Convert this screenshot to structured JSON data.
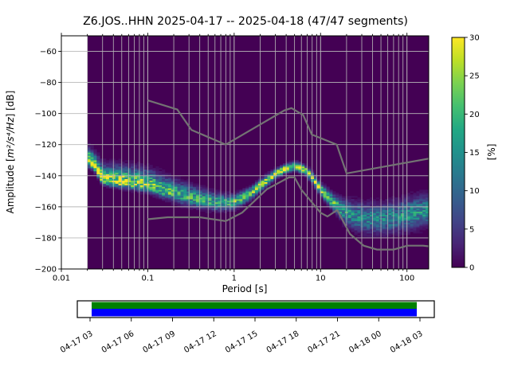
{
  "figure": {
    "title": "Z6.JOS..HHN   2025-04-17 -- 2025-04-18  (47/47 segments)",
    "station_id": "Z6.JOS..HHN",
    "date_range": "2025-04-17 -- 2025-04-18",
    "segments": "47/47 segments",
    "xlabel": "Period [s]",
    "ylabel_prefix": "Amplitude [",
    "ylabel_math": "m²/s⁴/Hz",
    "ylabel_suffix": "] [dB]"
  },
  "chart_data": {
    "type": "heatmap",
    "title": "Z6.JOS..HHN   2025-04-17 -- 2025-04-18  (47/47 segments)",
    "xlabel": "Period [s]",
    "ylabel": "Amplitude [m²/s⁴/Hz] [dB]",
    "xscale": "log",
    "xlim": [
      0.01,
      178.6
    ],
    "ylim": [
      -200,
      -50
    ],
    "x_major_ticks": [
      {
        "value": 0.01,
        "label": "0.01"
      },
      {
        "value": 0.1,
        "label": "0.1"
      },
      {
        "value": 1,
        "label": "1"
      },
      {
        "value": 10,
        "label": "10"
      },
      {
        "value": 100,
        "label": "100"
      }
    ],
    "y_ticks": [
      {
        "value": -60,
        "label": "−60"
      },
      {
        "value": -80,
        "label": "−80"
      },
      {
        "value": -100,
        "label": "−100"
      },
      {
        "value": -120,
        "label": "−120"
      },
      {
        "value": -140,
        "label": "−140"
      },
      {
        "value": -160,
        "label": "−160"
      },
      {
        "value": -180,
        "label": "−180"
      },
      {
        "value": -200,
        "label": "−200"
      }
    ],
    "grid": true,
    "grid_color": "#b8b8b8",
    "background_color": "#440154",
    "colorbar": {
      "label": "[%]",
      "min": 0,
      "max": 30,
      "ticks": [
        0,
        5,
        10,
        15,
        20,
        25,
        30
      ],
      "colormap": "viridis",
      "stops": [
        [
          0.0,
          "#440154"
        ],
        [
          0.1,
          "#482475"
        ],
        [
          0.2,
          "#414487"
        ],
        [
          0.3,
          "#355f8d"
        ],
        [
          0.4,
          "#2a788e"
        ],
        [
          0.5,
          "#21918c"
        ],
        [
          0.6,
          "#22a884"
        ],
        [
          0.7,
          "#44bf70"
        ],
        [
          0.8,
          "#7ad151"
        ],
        [
          0.9,
          "#bddf26"
        ],
        [
          1.0,
          "#fde725"
        ]
      ]
    },
    "psd_distribution": {
      "period_range_s": [
        0.02,
        178.6
      ],
      "anchors": [
        {
          "period": 0.02,
          "mode_db": -130.5,
          "sigma_down_db": 2.0,
          "sigma_up_db": 4.5,
          "peak_pct": 30
        },
        {
          "period": 0.024,
          "mode_db": -134.0,
          "sigma_down_db": 1.8,
          "sigma_up_db": 4.5,
          "peak_pct": 30
        },
        {
          "period": 0.03,
          "mode_db": -143.0,
          "sigma_down_db": 1.8,
          "sigma_up_db": 5.0,
          "peak_pct": 30
        },
        {
          "period": 0.045,
          "mode_db": -144.5,
          "sigma_down_db": 2.0,
          "sigma_up_db": 5.5,
          "peak_pct": 28
        },
        {
          "period": 0.07,
          "mode_db": -145.5,
          "sigma_down_db": 2.2,
          "sigma_up_db": 5.5,
          "peak_pct": 26
        },
        {
          "period": 0.1,
          "mode_db": -146.5,
          "sigma_down_db": 2.5,
          "sigma_up_db": 5.5,
          "peak_pct": 24
        },
        {
          "period": 0.16,
          "mode_db": -150.0,
          "sigma_down_db": 3.0,
          "sigma_up_db": 5.0,
          "peak_pct": 21
        },
        {
          "period": 0.25,
          "mode_db": -153.0,
          "sigma_down_db": 3.2,
          "sigma_up_db": 4.5,
          "peak_pct": 19
        },
        {
          "period": 0.4,
          "mode_db": -156.0,
          "sigma_down_db": 3.0,
          "sigma_up_db": 4.0,
          "peak_pct": 18
        },
        {
          "period": 0.65,
          "mode_db": -157.8,
          "sigma_down_db": 2.8,
          "sigma_up_db": 3.2,
          "peak_pct": 19
        },
        {
          "period": 1.0,
          "mode_db": -157.5,
          "sigma_down_db": 2.5,
          "sigma_up_db": 2.6,
          "peak_pct": 21
        },
        {
          "period": 1.5,
          "mode_db": -152.5,
          "sigma_down_db": 2.2,
          "sigma_up_db": 2.3,
          "peak_pct": 23
        },
        {
          "period": 2.2,
          "mode_db": -145.0,
          "sigma_down_db": 2.0,
          "sigma_up_db": 2.0,
          "peak_pct": 26
        },
        {
          "period": 3.0,
          "mode_db": -139.5,
          "sigma_down_db": 1.7,
          "sigma_up_db": 1.7,
          "peak_pct": 29
        },
        {
          "period": 4.0,
          "mode_db": -135.8,
          "sigma_down_db": 1.5,
          "sigma_up_db": 1.6,
          "peak_pct": 30
        },
        {
          "period": 5.0,
          "mode_db": -134.3,
          "sigma_down_db": 1.5,
          "sigma_up_db": 1.6,
          "peak_pct": 30
        },
        {
          "period": 6.5,
          "mode_db": -136.5,
          "sigma_down_db": 1.6,
          "sigma_up_db": 1.7,
          "peak_pct": 30
        },
        {
          "period": 8.0,
          "mode_db": -141.5,
          "sigma_down_db": 1.8,
          "sigma_up_db": 1.9,
          "peak_pct": 28
        },
        {
          "period": 10.0,
          "mode_db": -149.5,
          "sigma_down_db": 2.0,
          "sigma_up_db": 2.2,
          "peak_pct": 26
        },
        {
          "period": 14.0,
          "mode_db": -157.5,
          "sigma_down_db": 2.8,
          "sigma_up_db": 3.0,
          "peak_pct": 20
        },
        {
          "period": 18.0,
          "mode_db": -163.0,
          "sigma_down_db": 4.0,
          "sigma_up_db": 4.2,
          "peak_pct": 16
        },
        {
          "period": 25.0,
          "mode_db": -166.5,
          "sigma_down_db": 5.0,
          "sigma_up_db": 5.2,
          "peak_pct": 14
        },
        {
          "period": 35.0,
          "mode_db": -168.0,
          "sigma_down_db": 5.5,
          "sigma_up_db": 5.5,
          "peak_pct": 13
        },
        {
          "period": 50.0,
          "mode_db": -168.0,
          "sigma_down_db": 5.5,
          "sigma_up_db": 5.5,
          "peak_pct": 13
        },
        {
          "period": 80.0,
          "mode_db": -166.8,
          "sigma_down_db": 5.5,
          "sigma_up_db": 5.8,
          "peak_pct": 14
        },
        {
          "period": 120.0,
          "mode_db": -164.5,
          "sigma_down_db": 5.5,
          "sigma_up_db": 5.8,
          "peak_pct": 15
        },
        {
          "period": 178.6,
          "mode_db": -162.5,
          "sigma_down_db": 5.5,
          "sigma_up_db": 5.8,
          "peak_pct": 15
        }
      ]
    },
    "noise_models": {
      "color": "#737373",
      "nhnm": [
        [
          0.1,
          -91.5
        ],
        [
          0.22,
          -97.4
        ],
        [
          0.32,
          -110.5
        ],
        [
          0.8,
          -120.0
        ],
        [
          3.8,
          -98.0
        ],
        [
          4.6,
          -96.5
        ],
        [
          6.3,
          -101.0
        ],
        [
          7.9,
          -113.5
        ],
        [
          15.4,
          -120.0
        ],
        [
          20.0,
          -138.5
        ],
        [
          178.6,
          -129.0
        ]
      ],
      "nlnm": [
        [
          0.1,
          -168.0
        ],
        [
          0.17,
          -166.7
        ],
        [
          0.4,
          -166.7
        ],
        [
          0.8,
          -169.2
        ],
        [
          1.24,
          -163.7
        ],
        [
          2.4,
          -148.6
        ],
        [
          4.3,
          -141.1
        ],
        [
          5.0,
          -141.1
        ],
        [
          6.0,
          -149.0
        ],
        [
          10.0,
          -163.8
        ],
        [
          12.0,
          -166.2
        ],
        [
          15.6,
          -162.1
        ],
        [
          21.9,
          -177.5
        ],
        [
          31.6,
          -185.0
        ],
        [
          45.0,
          -187.5
        ],
        [
          70.0,
          -187.5
        ],
        [
          101.0,
          -185.0
        ],
        [
          154.0,
          -185.0
        ],
        [
          178.6,
          -185.4
        ]
      ]
    }
  },
  "timeline": {
    "tick_labels": [
      "04-17 03",
      "04-17 06",
      "04-17 09",
      "04-17 12",
      "04-17 15",
      "04-17 18",
      "04-17 21",
      "04-18 00",
      "04-18 03"
    ],
    "used_color": "#008000",
    "coverage_color": "#0000ff",
    "box_color": "#ffffff",
    "border_color": "#000000"
  }
}
